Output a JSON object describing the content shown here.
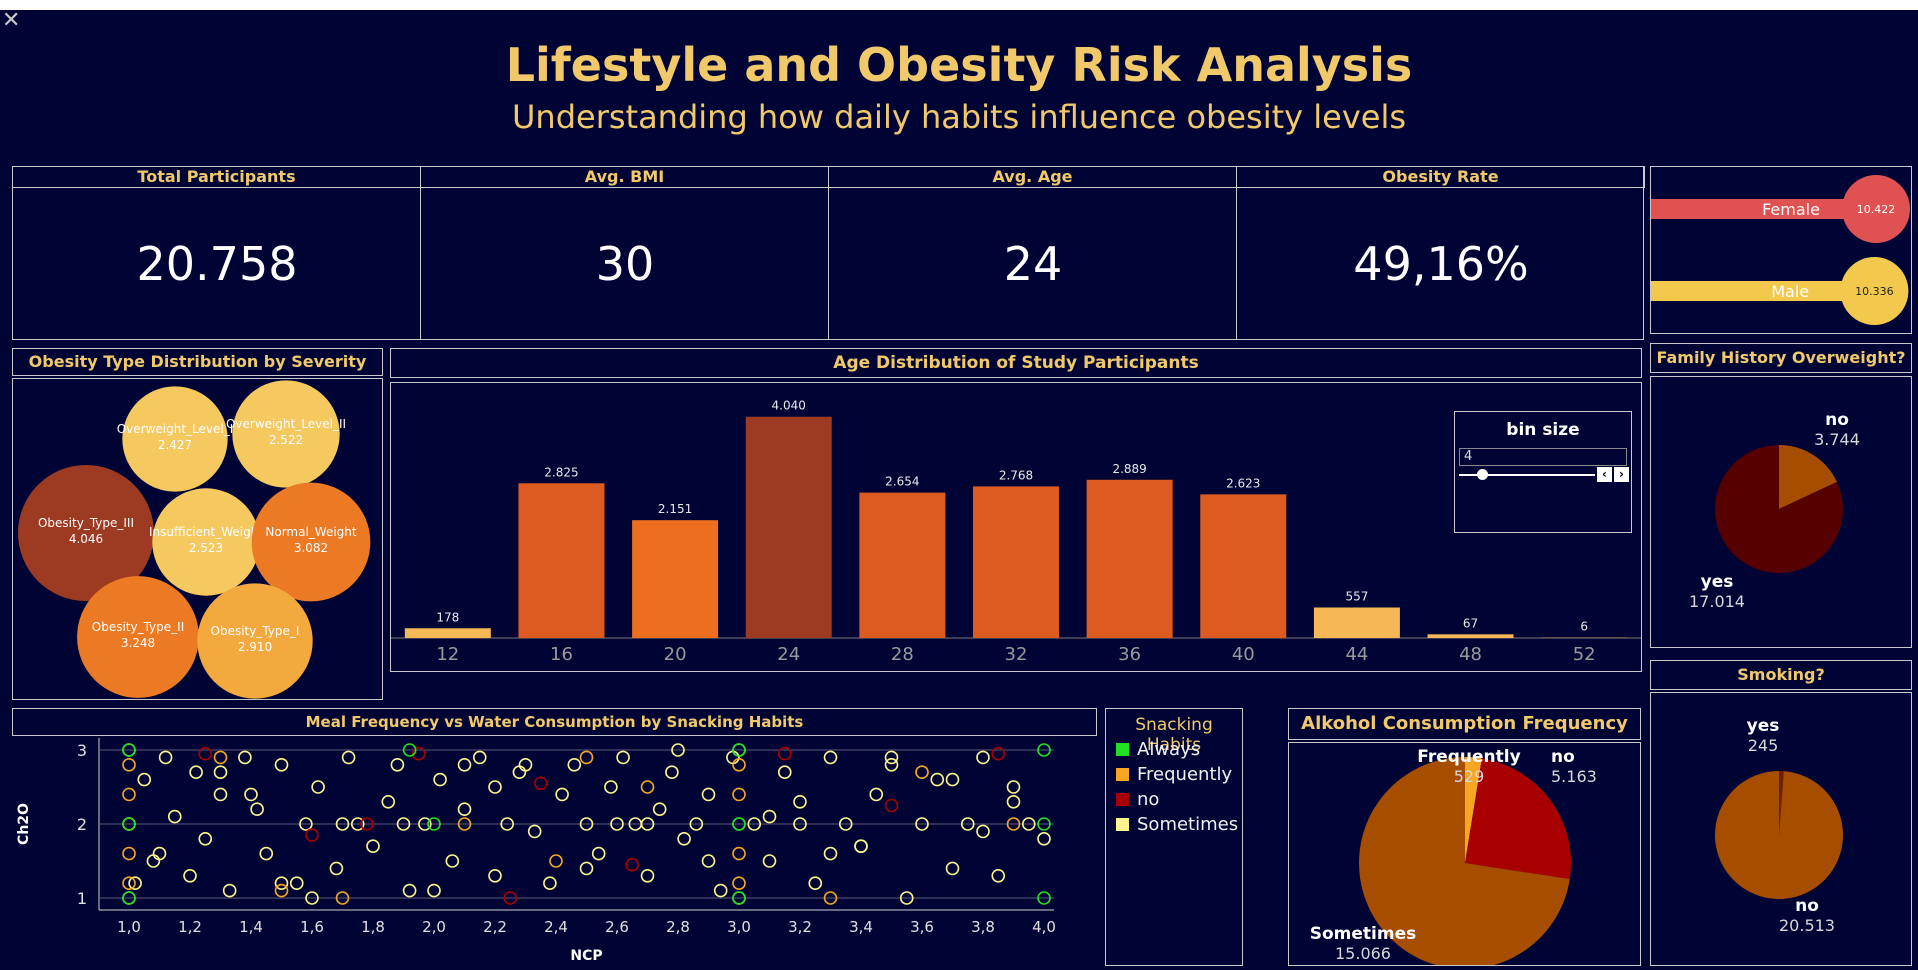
{
  "header": {
    "title": "Lifestyle and Obesity Risk Analysis",
    "subtitle": "Understanding how daily habits influence obesity levels"
  },
  "kpis": [
    {
      "label": "Total Participants",
      "value": "20.758"
    },
    {
      "label": "Avg. BMI",
      "value": "30"
    },
    {
      "label": "Avg. Age",
      "value": "24"
    },
    {
      "label": "Obesity Rate",
      "value": "49,16%"
    }
  ],
  "gender": [
    {
      "label": "Female",
      "value": "10.422",
      "fraction": 1.0,
      "color": "#e05252"
    },
    {
      "label": "Male",
      "value": "10.336",
      "fraction": 0.992,
      "color": "#f2c94c"
    }
  ],
  "colors": {
    "background": "#000434",
    "title": "#f2c96a",
    "border": "#c9c9c9"
  },
  "chart_data": [
    {
      "type": "bubble",
      "title": "Obesity Type Distribution by Severity",
      "items": [
        {
          "label": "Overweight_Level_I",
          "value": 2427,
          "display": "2.427",
          "color": "#f6c860"
        },
        {
          "label": "Overweight_Level_II",
          "value": 2522,
          "display": "2.522",
          "color": "#f6c860"
        },
        {
          "label": "Obesity_Type_III",
          "value": 4046,
          "display": "4.046",
          "color": "#9c3a22"
        },
        {
          "label": "Insufficient_Weight",
          "value": 2523,
          "display": "2.523",
          "color": "#f6c860"
        },
        {
          "label": "Normal_Weight",
          "value": 3082,
          "display": "3.082",
          "color": "#ec7a24"
        },
        {
          "label": "Obesity_Type_II",
          "value": 3248,
          "display": "3.248",
          "color": "#ec7a24"
        },
        {
          "label": "Obesity_Type_I",
          "value": 2910,
          "display": "2.910",
          "color": "#f4a93e"
        }
      ]
    },
    {
      "type": "bar",
      "title": "Age Distribution of Study Participants",
      "categories": [
        "12",
        "16",
        "20",
        "24",
        "28",
        "32",
        "36",
        "40",
        "44",
        "48",
        "52"
      ],
      "values": [
        178,
        2825,
        2151,
        4040,
        2654,
        2768,
        2889,
        2623,
        557,
        67,
        6
      ],
      "labels": [
        "178",
        "2.825",
        "2.151",
        "4.040",
        "2.654",
        "2.768",
        "2.889",
        "2.623",
        "557",
        "67",
        "6"
      ],
      "colors": [
        "#f6b756",
        "#dd5a20",
        "#ec6e1e",
        "#9c3a22",
        "#dd5a20",
        "#dd5a20",
        "#dd5a20",
        "#dd5a20",
        "#f6b756",
        "#f6b756",
        "#f6b756"
      ],
      "ylim": [
        0,
        4400
      ],
      "control": {
        "title": "bin size",
        "value": "4"
      }
    },
    {
      "type": "pie",
      "title": "Family History Overweight?",
      "slices": [
        {
          "label": "no",
          "value": 3744,
          "display": "3.744",
          "color": "#a64d00"
        },
        {
          "label": "yes",
          "value": 17014,
          "display": "17.014",
          "color": "#560000"
        }
      ]
    },
    {
      "type": "pie",
      "title": "Smoking?",
      "slices": [
        {
          "label": "yes",
          "value": 245,
          "display": "245",
          "color": "#6e1d00"
        },
        {
          "label": "no",
          "value": 20513,
          "display": "20.513",
          "color": "#a64d00"
        }
      ]
    },
    {
      "type": "pie",
      "title": "Alkohol Consumption Frequency",
      "slices": [
        {
          "label": "Frequently",
          "value": 529,
          "display": "529",
          "color": "#f6a623"
        },
        {
          "label": "no",
          "value": 5163,
          "display": "5.163",
          "color": "#a80000"
        },
        {
          "label": "Sometimes",
          "value": 15066,
          "display": "15.066",
          "color": "#a64d00"
        }
      ]
    },
    {
      "type": "scatter",
      "title": "Meal Frequency vs Water Consumption by Snacking Habits",
      "xlabel": "NCP",
      "ylabel": "Ch2O",
      "xlim": [
        1.0,
        4.0
      ],
      "ylim": [
        1,
        3
      ],
      "xticks": [
        "1,0",
        "1,2",
        "1,4",
        "1,6",
        "1,8",
        "2,0",
        "2,2",
        "2,4",
        "2,6",
        "2,8",
        "3,0",
        "3,2",
        "3,4",
        "3,6",
        "3,8",
        "4,0"
      ],
      "yticks": [
        "1",
        "2",
        "3"
      ],
      "legend": {
        "title": "Snacking Habits",
        "items": [
          {
            "label": "Always",
            "color": "#21e021"
          },
          {
            "label": "Frequently",
            "color": "#f6a623"
          },
          {
            "label": "no",
            "color": "#a80000"
          },
          {
            "label": "Sometimes",
            "color": "#fdf48a"
          }
        ]
      },
      "series": [
        {
          "name": "Sometimes",
          "color": "#fdf48a",
          "x": [
            1.0,
            1.0,
            1.0,
            1.02,
            1.05,
            1.08,
            1.12,
            1.15,
            1.2,
            1.22,
            1.25,
            1.3,
            1.33,
            1.38,
            1.42,
            1.45,
            1.5,
            1.55,
            1.58,
            1.62,
            1.68,
            1.72,
            1.75,
            1.8,
            1.85,
            1.88,
            1.92,
            1.97,
            2.02,
            2.06,
            2.1,
            2.15,
            2.2,
            2.24,
            2.28,
            2.33,
            2.38,
            2.42,
            2.46,
            2.5,
            2.54,
            2.58,
            2.62,
            2.66,
            2.7,
            2.74,
            2.78,
            2.82,
            2.86,
            2.9,
            2.94,
            2.98,
            3.0,
            3.0,
            3.05,
            3.1,
            3.15,
            3.2,
            3.25,
            3.3,
            3.35,
            3.4,
            3.45,
            3.5,
            3.55,
            3.6,
            3.65,
            3.7,
            3.75,
            3.8,
            3.85,
            3.9,
            3.95,
            4.0,
            1.1,
            1.4,
            1.7,
            2.0,
            2.3,
            2.6,
            2.9,
            3.2,
            3.5,
            3.8,
            1.3,
            1.6,
            1.9,
            2.2,
            2.5,
            2.8,
            3.1,
            3.4,
            3.7,
            1.5,
            2.1,
            2.7,
            3.3,
            3.9
          ],
          "y": [
            1,
            2,
            3,
            1.2,
            2.6,
            1.5,
            2.9,
            2.1,
            1.3,
            2.7,
            1.8,
            2.4,
            1.1,
            2.9,
            2.2,
            1.6,
            2.8,
            1.2,
            2.0,
            2.5,
            1.4,
            2.9,
            2.0,
            1.7,
            2.3,
            2.8,
            1.1,
            2.0,
            2.6,
            1.5,
            2.2,
            2.9,
            1.3,
            2.0,
            2.7,
            1.9,
            1.2,
            2.4,
            2.8,
            2.0,
            1.6,
            2.5,
            2.9,
            2.0,
            1.3,
            2.2,
            2.7,
            1.8,
            2.0,
            2.4,
            1.1,
            2.9,
            1,
            3,
            2.0,
            1.5,
            2.7,
            2.0,
            1.2,
            2.9,
            2.0,
            1.7,
            2.4,
            2.8,
            1.0,
            2.0,
            2.6,
            1.4,
            2.0,
            2.9,
            1.3,
            2.5,
            2.0,
            1.8,
            1.6,
            2.4,
            2.0,
            1.1,
            2.8,
            2.0,
            1.5,
            2.3,
            2.9,
            1.9,
            2.7,
            1.0,
            2.0,
            2.5,
            1.4,
            3.0,
            2.1,
            1.7,
            2.6,
            1.2,
            2.8,
            2.0,
            1.6,
            2.3
          ]
        },
        {
          "name": "Frequently",
          "color": "#f6a623",
          "x": [
            1.0,
            1.0,
            1.0,
            1.0,
            1.0,
            1.3,
            1.7,
            2.1,
            2.4,
            2.7,
            3.0,
            3.0,
            3.0,
            3.0,
            3.0,
            3.3,
            3.6,
            3.9,
            1.5,
            2.5
          ],
          "y": [
            1.2,
            1.6,
            2.0,
            2.4,
            2.8,
            2.9,
            1.0,
            2.0,
            1.5,
            2.5,
            1.2,
            1.6,
            2.0,
            2.4,
            2.8,
            1.0,
            2.7,
            2.0,
            1.1,
            2.9
          ]
        },
        {
          "name": "no",
          "color": "#a80000",
          "x": [
            1.25,
            1.6,
            1.95,
            2.35,
            2.65,
            3.15,
            3.5,
            3.85,
            2.25,
            1.78
          ],
          "y": [
            2.95,
            1.85,
            2.95,
            2.55,
            1.45,
            2.95,
            2.25,
            2.95,
            1.0,
            2.0
          ]
        },
        {
          "name": "Always",
          "color": "#21e021",
          "x": [
            1.0,
            1.0,
            1.0,
            3.0,
            3.0,
            3.0,
            4.0,
            4.0,
            4.0,
            2.0,
            1.92
          ],
          "y": [
            1,
            2,
            3,
            1,
            2,
            3,
            1,
            2,
            3,
            2.0,
            3.0
          ]
        }
      ]
    }
  ]
}
